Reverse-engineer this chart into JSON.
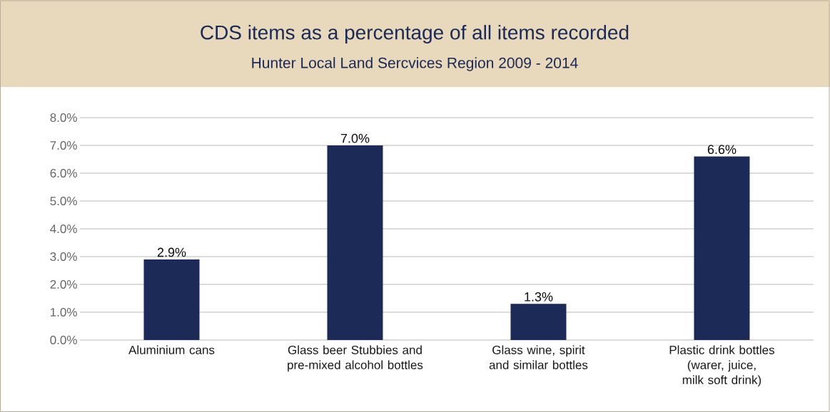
{
  "chart_data": {
    "type": "bar",
    "title": "CDS items as a percentage of all items recorded",
    "subtitle": "Hunter Local Land Sercvices Region 2009 - 2014",
    "categories": [
      "Aluminium cans",
      "Glass beer Stubbies and pre-mixed alcohol bottles",
      "Glass wine, spirit and similar bottles",
      "Plastic drink bottles (warer, juice, milk soft drink)"
    ],
    "values": [
      2.9,
      7.0,
      1.3,
      6.6
    ],
    "value_labels": [
      "2.9%",
      "7.0%",
      "1.3%",
      "6.6%"
    ],
    "color": "#1b2a57",
    "ylim": [
      0,
      8
    ],
    "yticks": [
      {
        "value": 0,
        "label": "0.0%"
      },
      {
        "value": 1,
        "label": "1.0%"
      },
      {
        "value": 2,
        "label": "2.0%"
      },
      {
        "value": 3,
        "label": "3.0%"
      },
      {
        "value": 4,
        "label": "4.0%"
      },
      {
        "value": 5,
        "label": "5.0%"
      },
      {
        "value": 6,
        "label": "6.0%"
      },
      {
        "value": 7,
        "label": "7.0%"
      },
      {
        "value": 8,
        "label": "8.0%"
      }
    ],
    "grid": "y"
  }
}
